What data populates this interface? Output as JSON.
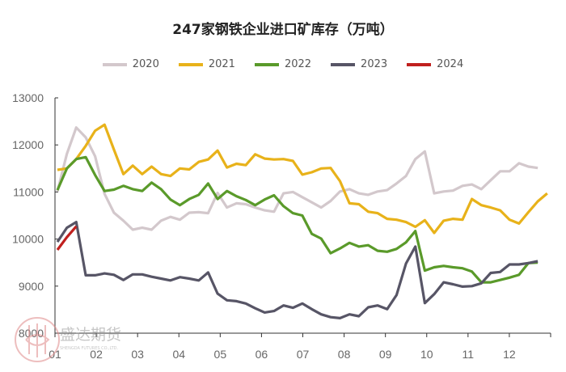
{
  "chart_data": {
    "type": "line",
    "title": "247家钢铁企业进口矿库存（万吨）",
    "xlabel": "",
    "ylabel": "",
    "x_unit": "week of year",
    "xticks": [
      "01",
      "02",
      "03",
      "04",
      "05",
      "06",
      "07",
      "08",
      "09",
      "10",
      "11",
      "12"
    ],
    "ylim": [
      8000,
      13000
    ],
    "yticks": [
      8000,
      9000,
      10000,
      11000,
      12000,
      13000
    ],
    "grid": false,
    "legend": "top",
    "series": [
      {
        "name": "2020",
        "color": "#d3c8cc",
        "values": [
          11010,
          11810,
          12370,
          12160,
          11760,
          10960,
          10560,
          10390,
          10200,
          10240,
          10200,
          10390,
          10470,
          10410,
          10560,
          10570,
          10550,
          10980,
          10670,
          10760,
          10740,
          10670,
          10610,
          10580,
          10970,
          11000,
          10890,
          10780,
          10670,
          10810,
          11010,
          11060,
          10970,
          10940,
          11010,
          11040,
          11180,
          11340,
          11700,
          11860,
          10970,
          11010,
          11030,
          11130,
          11160,
          11060,
          11250,
          11440,
          11440,
          11610,
          11540,
          11510
        ]
      },
      {
        "name": "2021",
        "color": "#e8b21a",
        "values": [
          11470,
          11500,
          11700,
          11980,
          12300,
          12430,
          11900,
          11380,
          11560,
          11380,
          11540,
          11380,
          11340,
          11500,
          11480,
          11640,
          11690,
          11880,
          11520,
          11600,
          11570,
          11800,
          11710,
          11690,
          11700,
          11660,
          11370,
          11420,
          11500,
          11510,
          11230,
          10760,
          10740,
          10580,
          10550,
          10430,
          10410,
          10360,
          10260,
          10400,
          10130,
          10390,
          10430,
          10410,
          10850,
          10720,
          10670,
          10610,
          10410,
          10330,
          10570,
          10800,
          10970
        ]
      },
      {
        "name": "2022",
        "color": "#5a9a2a",
        "values": [
          11040,
          11500,
          11700,
          11740,
          11360,
          11020,
          11050,
          11130,
          11060,
          11020,
          11200,
          11060,
          10840,
          10720,
          10850,
          10940,
          11180,
          10850,
          11020,
          10910,
          10830,
          10720,
          10840,
          10930,
          10700,
          10550,
          10500,
          10110,
          10010,
          9700,
          9800,
          9920,
          9840,
          9870,
          9750,
          9730,
          9790,
          9930,
          10170,
          9330,
          9400,
          9430,
          9400,
          9380,
          9310,
          9080,
          9080,
          9130,
          9180,
          9240,
          9490,
          9500
        ]
      },
      {
        "name": "2023",
        "color": "#575566",
        "values": [
          9940,
          10240,
          10360,
          9230,
          9230,
          9270,
          9240,
          9130,
          9250,
          9250,
          9200,
          9160,
          9120,
          9190,
          9160,
          9120,
          9290,
          8840,
          8700,
          8680,
          8630,
          8530,
          8440,
          8470,
          8590,
          8540,
          8630,
          8510,
          8400,
          8340,
          8320,
          8400,
          8360,
          8550,
          8590,
          8510,
          8810,
          9480,
          9840,
          8640,
          8830,
          9080,
          9040,
          8990,
          9000,
          9060,
          9280,
          9300,
          9460,
          9460,
          9490,
          9530
        ]
      },
      {
        "name": "2024",
        "color": "#c0201e",
        "values": [
          9770,
          10040,
          10270
        ]
      }
    ]
  },
  "watermark": {
    "text": "盛达期货",
    "subtext": "SHENGDA FUTURES CO.,LTD."
  }
}
